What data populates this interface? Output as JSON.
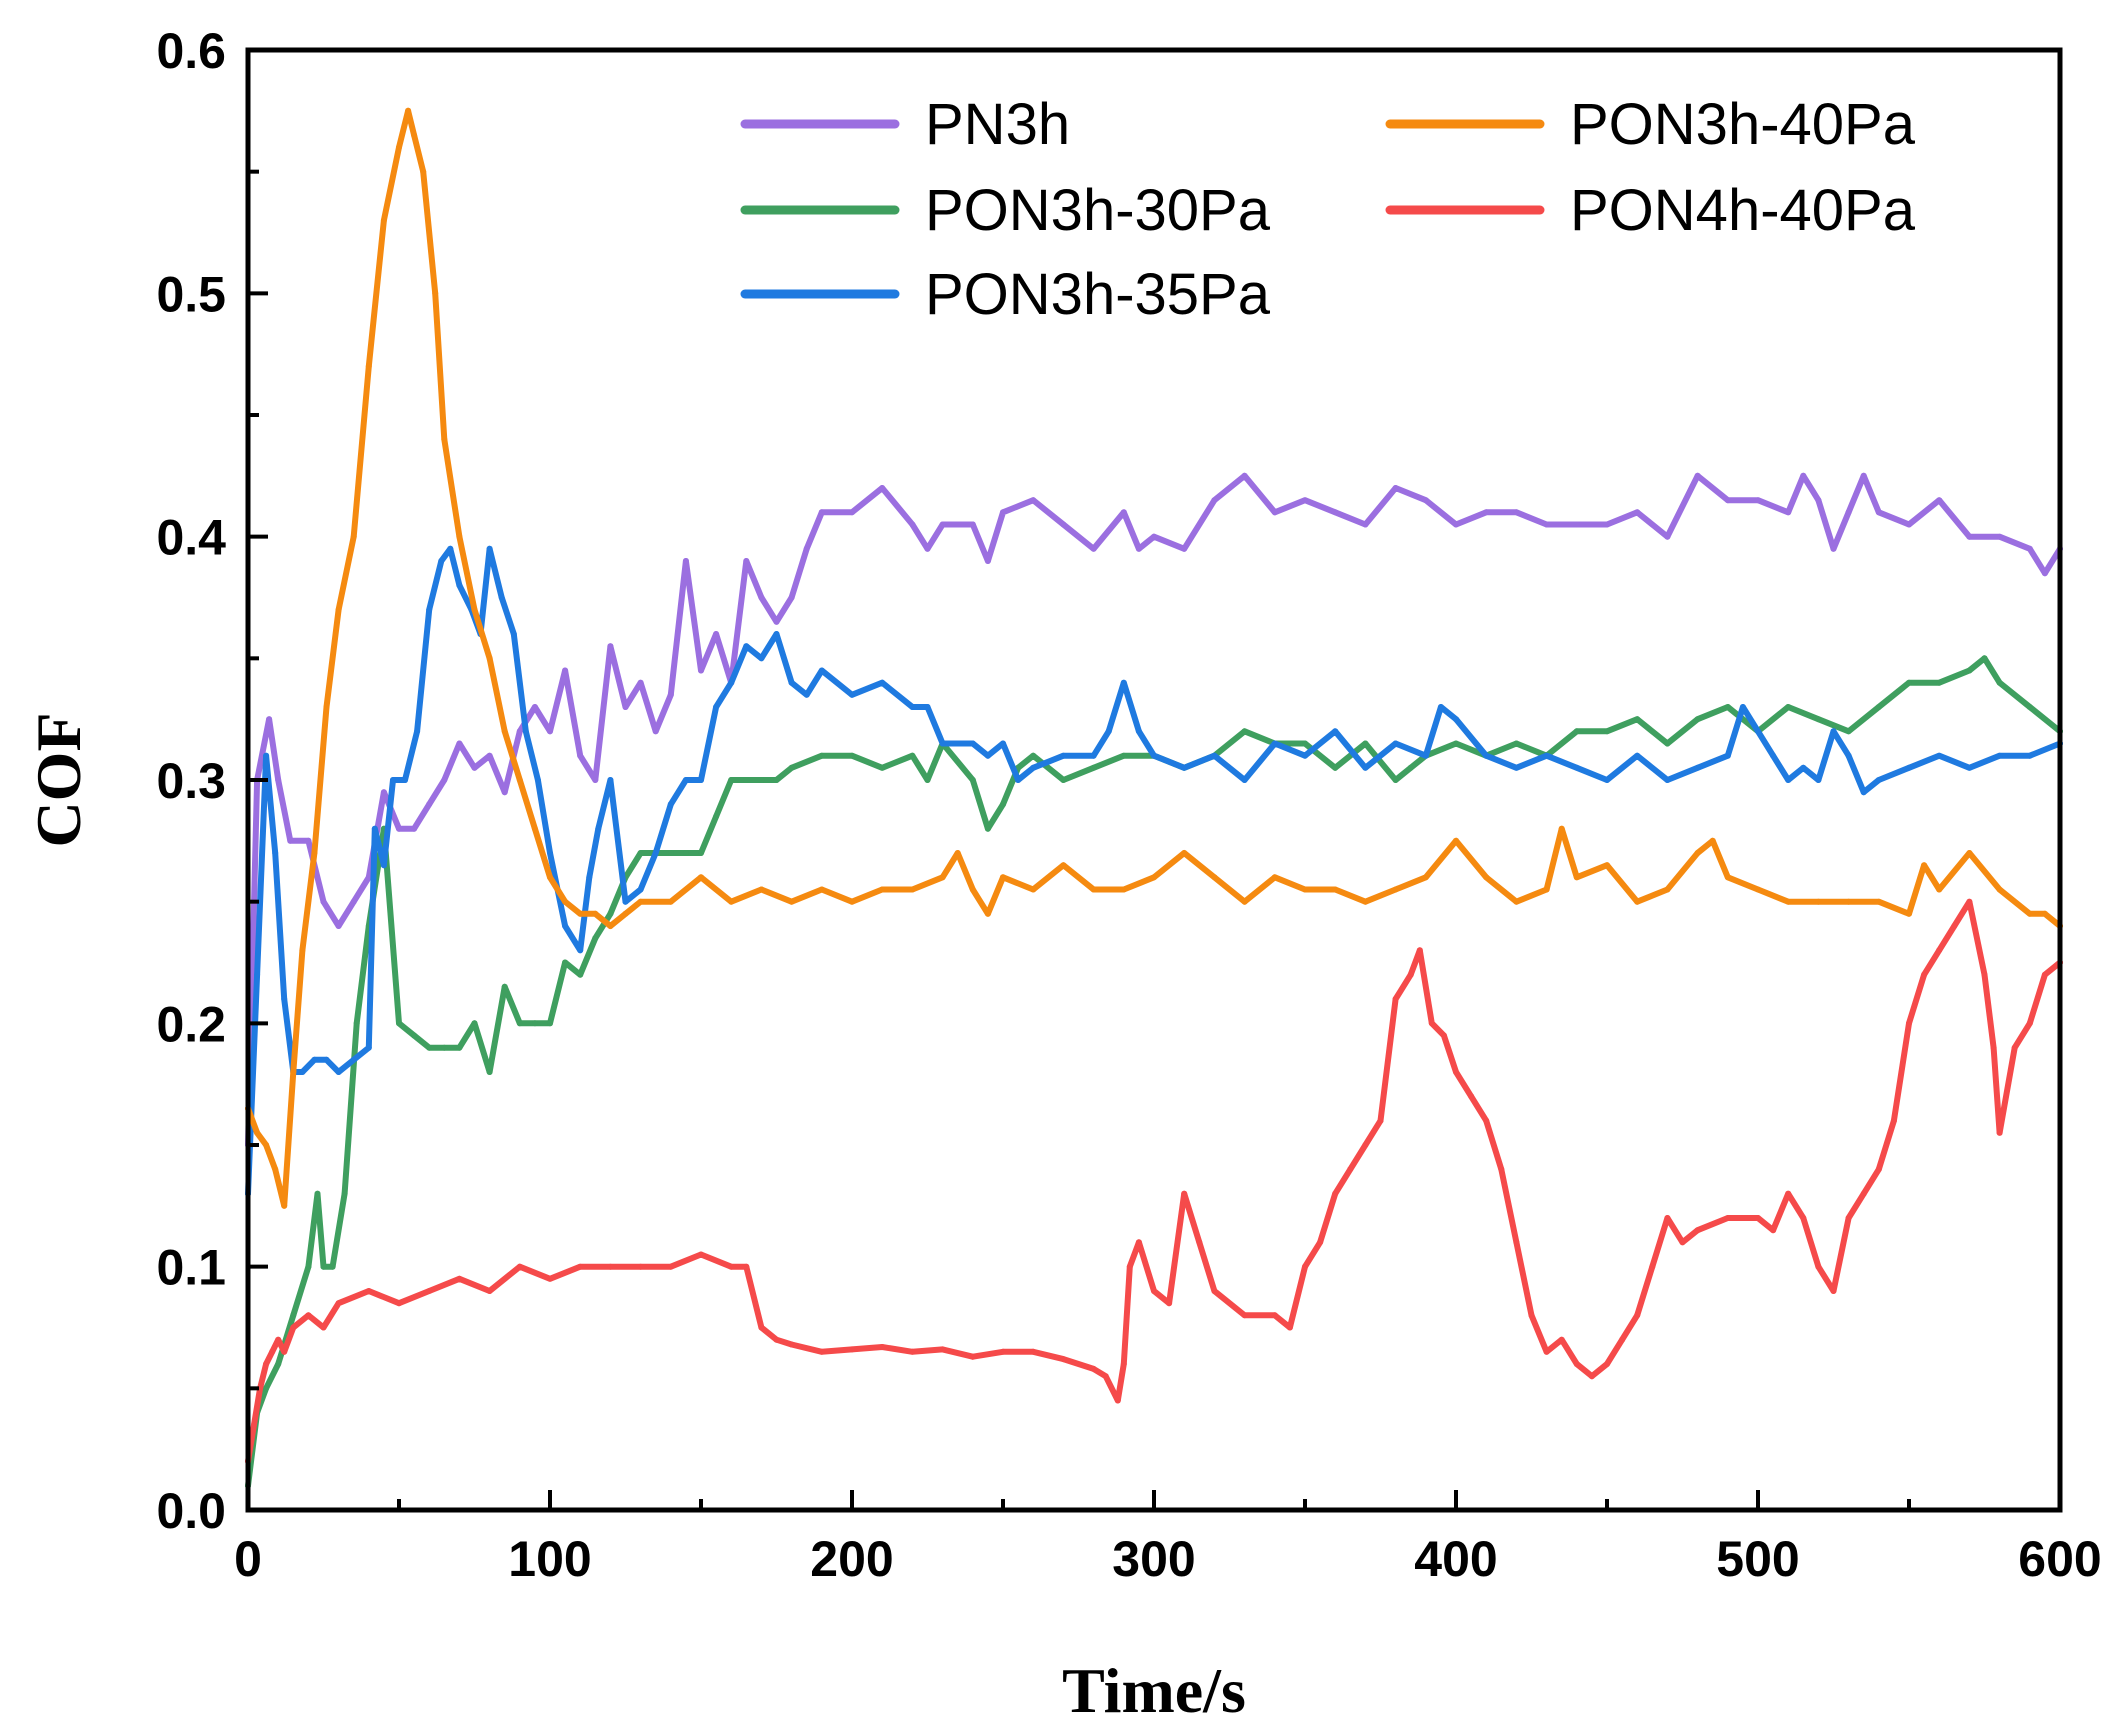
{
  "chart_data": {
    "type": "line",
    "title": "",
    "xlabel": "Time/s",
    "ylabel": "COF",
    "xlim": [
      0,
      600
    ],
    "ylim": [
      0,
      0.6
    ],
    "xticks": [
      0,
      100,
      200,
      300,
      400,
      500,
      600
    ],
    "xtick_labels": [
      "0",
      "100",
      "200",
      "300",
      "400",
      "500",
      "600"
    ],
    "yticks": [
      0,
      0.1,
      0.2,
      0.3,
      0.4,
      0.5,
      0.6
    ],
    "ytick_labels": [
      "0.0",
      "0.1",
      "0.2",
      "0.3",
      "0.4",
      "0.5",
      "0.6"
    ],
    "grid": false,
    "legend_position": "top-right",
    "series": [
      {
        "name": "PN3h",
        "color": "#9b6fe0",
        "x": [
          0,
          3,
          7,
          10,
          14,
          20,
          25,
          30,
          35,
          40,
          45,
          50,
          55,
          60,
          65,
          70,
          75,
          80,
          85,
          90,
          95,
          100,
          105,
          110,
          115,
          120,
          125,
          130,
          135,
          140,
          145,
          150,
          155,
          160,
          165,
          170,
          175,
          180,
          185,
          190,
          200,
          210,
          220,
          225,
          230,
          240,
          245,
          250,
          260,
          270,
          280,
          290,
          295,
          300,
          310,
          320,
          330,
          340,
          350,
          360,
          370,
          380,
          390,
          400,
          410,
          420,
          430,
          440,
          450,
          460,
          470,
          480,
          490,
          500,
          510,
          515,
          520,
          525,
          530,
          535,
          540,
          550,
          560,
          570,
          580,
          590,
          595,
          600
        ],
        "y": [
          0.15,
          0.3,
          0.325,
          0.3,
          0.275,
          0.275,
          0.25,
          0.24,
          0.25,
          0.26,
          0.295,
          0.28,
          0.28,
          0.29,
          0.3,
          0.315,
          0.305,
          0.31,
          0.295,
          0.32,
          0.33,
          0.32,
          0.345,
          0.31,
          0.3,
          0.355,
          0.33,
          0.34,
          0.32,
          0.335,
          0.39,
          0.345,
          0.36,
          0.34,
          0.39,
          0.375,
          0.365,
          0.375,
          0.395,
          0.41,
          0.41,
          0.42,
          0.405,
          0.395,
          0.405,
          0.405,
          0.39,
          0.41,
          0.415,
          0.405,
          0.395,
          0.41,
          0.395,
          0.4,
          0.395,
          0.415,
          0.425,
          0.41,
          0.415,
          0.41,
          0.405,
          0.42,
          0.415,
          0.405,
          0.41,
          0.41,
          0.405,
          0.405,
          0.405,
          0.41,
          0.4,
          0.425,
          0.415,
          0.415,
          0.41,
          0.425,
          0.415,
          0.395,
          0.41,
          0.425,
          0.41,
          0.405,
          0.415,
          0.4,
          0.4,
          0.395,
          0.385,
          0.395
        ]
      },
      {
        "name": "PON3h-30Pa",
        "color": "#3f9f5f",
        "x": [
          0,
          3,
          6,
          10,
          15,
          20,
          23,
          25,
          28,
          32,
          36,
          40,
          45,
          50,
          55,
          60,
          65,
          70,
          75,
          80,
          85,
          90,
          95,
          100,
          105,
          110,
          115,
          120,
          125,
          130,
          135,
          140,
          145,
          150,
          155,
          160,
          165,
          170,
          175,
          180,
          190,
          200,
          210,
          220,
          225,
          230,
          240,
          245,
          250,
          255,
          260,
          270,
          280,
          290,
          300,
          310,
          320,
          330,
          340,
          350,
          360,
          370,
          380,
          385,
          390,
          400,
          410,
          420,
          430,
          440,
          450,
          460,
          470,
          480,
          490,
          500,
          510,
          520,
          530,
          540,
          550,
          560,
          570,
          575,
          580,
          590,
          600
        ],
        "y": [
          0.01,
          0.04,
          0.05,
          0.06,
          0.08,
          0.1,
          0.13,
          0.1,
          0.1,
          0.13,
          0.2,
          0.24,
          0.28,
          0.2,
          0.195,
          0.19,
          0.19,
          0.19,
          0.2,
          0.18,
          0.215,
          0.2,
          0.2,
          0.2,
          0.225,
          0.22,
          0.235,
          0.245,
          0.26,
          0.27,
          0.27,
          0.27,
          0.27,
          0.27,
          0.285,
          0.3,
          0.3,
          0.3,
          0.3,
          0.305,
          0.31,
          0.31,
          0.305,
          0.31,
          0.3,
          0.315,
          0.3,
          0.28,
          0.29,
          0.305,
          0.31,
          0.3,
          0.305,
          0.31,
          0.31,
          0.305,
          0.31,
          0.32,
          0.315,
          0.315,
          0.305,
          0.315,
          0.3,
          0.305,
          0.31,
          0.315,
          0.31,
          0.315,
          0.31,
          0.32,
          0.32,
          0.325,
          0.315,
          0.325,
          0.33,
          0.32,
          0.33,
          0.325,
          0.32,
          0.33,
          0.34,
          0.34,
          0.345,
          0.35,
          0.34,
          0.33,
          0.32
        ]
      },
      {
        "name": "PON3h-35Pa",
        "color": "#1f7ae0",
        "x": [
          0,
          3,
          6,
          9,
          12,
          15,
          18,
          22,
          26,
          30,
          35,
          40,
          42,
          45,
          48,
          52,
          56,
          60,
          64,
          67,
          70,
          74,
          77,
          80,
          84,
          88,
          92,
          96,
          100,
          105,
          110,
          113,
          116,
          120,
          125,
          130,
          135,
          140,
          145,
          150,
          155,
          160,
          165,
          170,
          175,
          180,
          185,
          190,
          200,
          210,
          220,
          225,
          230,
          240,
          245,
          250,
          255,
          260,
          270,
          280,
          285,
          290,
          295,
          300,
          310,
          320,
          330,
          340,
          350,
          360,
          370,
          380,
          390,
          395,
          400,
          410,
          420,
          430,
          440,
          450,
          460,
          470,
          480,
          490,
          495,
          500,
          505,
          510,
          515,
          520,
          525,
          530,
          535,
          540,
          550,
          560,
          570,
          580,
          590,
          600
        ],
        "y": [
          0.13,
          0.22,
          0.31,
          0.27,
          0.21,
          0.18,
          0.18,
          0.185,
          0.185,
          0.18,
          0.185,
          0.19,
          0.28,
          0.265,
          0.3,
          0.3,
          0.32,
          0.37,
          0.39,
          0.395,
          0.38,
          0.37,
          0.36,
          0.395,
          0.375,
          0.36,
          0.32,
          0.3,
          0.27,
          0.24,
          0.23,
          0.26,
          0.28,
          0.3,
          0.25,
          0.255,
          0.27,
          0.29,
          0.3,
          0.3,
          0.33,
          0.34,
          0.355,
          0.35,
          0.36,
          0.34,
          0.335,
          0.345,
          0.335,
          0.34,
          0.33,
          0.33,
          0.315,
          0.315,
          0.31,
          0.315,
          0.3,
          0.305,
          0.31,
          0.31,
          0.32,
          0.34,
          0.32,
          0.31,
          0.305,
          0.31,
          0.3,
          0.315,
          0.31,
          0.32,
          0.305,
          0.315,
          0.31,
          0.33,
          0.325,
          0.31,
          0.305,
          0.31,
          0.305,
          0.3,
          0.31,
          0.3,
          0.305,
          0.31,
          0.33,
          0.32,
          0.31,
          0.3,
          0.305,
          0.3,
          0.32,
          0.31,
          0.295,
          0.3,
          0.305,
          0.31,
          0.305,
          0.31,
          0.31,
          0.315
        ]
      },
      {
        "name": "PON3h-40Pa",
        "color": "#f58a10",
        "x": [
          0,
          3,
          6,
          9,
          12,
          15,
          18,
          22,
          26,
          30,
          35,
          40,
          45,
          50,
          53,
          55,
          58,
          62,
          65,
          70,
          75,
          80,
          85,
          90,
          95,
          100,
          105,
          110,
          115,
          120,
          125,
          130,
          140,
          150,
          160,
          170,
          180,
          190,
          200,
          210,
          220,
          230,
          235,
          240,
          245,
          250,
          260,
          270,
          280,
          290,
          300,
          310,
          320,
          330,
          340,
          350,
          360,
          370,
          380,
          390,
          400,
          410,
          420,
          430,
          435,
          440,
          450,
          460,
          470,
          480,
          485,
          490,
          500,
          510,
          520,
          530,
          540,
          550,
          555,
          560,
          570,
          580,
          590,
          595,
          600
        ],
        "y": [
          0.165,
          0.155,
          0.15,
          0.14,
          0.125,
          0.18,
          0.23,
          0.27,
          0.33,
          0.37,
          0.4,
          0.47,
          0.53,
          0.56,
          0.575,
          0.565,
          0.55,
          0.5,
          0.44,
          0.4,
          0.37,
          0.35,
          0.32,
          0.3,
          0.28,
          0.26,
          0.25,
          0.245,
          0.245,
          0.24,
          0.245,
          0.25,
          0.25,
          0.26,
          0.25,
          0.255,
          0.25,
          0.255,
          0.25,
          0.255,
          0.255,
          0.26,
          0.27,
          0.255,
          0.245,
          0.26,
          0.255,
          0.265,
          0.255,
          0.255,
          0.26,
          0.27,
          0.26,
          0.25,
          0.26,
          0.255,
          0.255,
          0.25,
          0.255,
          0.26,
          0.275,
          0.26,
          0.25,
          0.255,
          0.28,
          0.26,
          0.265,
          0.25,
          0.255,
          0.27,
          0.275,
          0.26,
          0.255,
          0.25,
          0.25,
          0.25,
          0.25,
          0.245,
          0.265,
          0.255,
          0.27,
          0.255,
          0.245,
          0.245,
          0.24
        ]
      },
      {
        "name": "PON4h-40Pa",
        "color": "#f54a4a",
        "x": [
          0,
          2,
          4,
          6,
          8,
          10,
          12,
          15,
          20,
          25,
          30,
          40,
          50,
          60,
          70,
          80,
          90,
          100,
          110,
          120,
          130,
          140,
          150,
          160,
          165,
          170,
          175,
          180,
          190,
          200,
          210,
          220,
          230,
          240,
          250,
          260,
          270,
          280,
          284,
          288,
          290,
          292,
          295,
          300,
          305,
          310,
          315,
          320,
          330,
          340,
          345,
          350,
          355,
          360,
          365,
          370,
          375,
          380,
          385,
          388,
          392,
          396,
          400,
          405,
          410,
          415,
          420,
          425,
          430,
          435,
          440,
          445,
          450,
          455,
          460,
          465,
          470,
          475,
          480,
          490,
          500,
          505,
          510,
          515,
          520,
          525,
          530,
          535,
          540,
          545,
          550,
          555,
          560,
          565,
          570,
          575,
          578,
          580,
          585,
          590,
          595,
          600
        ],
        "y": [
          0.02,
          0.035,
          0.05,
          0.06,
          0.065,
          0.07,
          0.065,
          0.075,
          0.08,
          0.075,
          0.085,
          0.09,
          0.085,
          0.09,
          0.095,
          0.09,
          0.1,
          0.095,
          0.1,
          0.1,
          0.1,
          0.1,
          0.105,
          0.1,
          0.1,
          0.075,
          0.07,
          0.068,
          0.065,
          0.066,
          0.067,
          0.065,
          0.066,
          0.063,
          0.065,
          0.065,
          0.062,
          0.058,
          0.055,
          0.045,
          0.06,
          0.1,
          0.11,
          0.09,
          0.085,
          0.13,
          0.11,
          0.09,
          0.08,
          0.08,
          0.075,
          0.1,
          0.11,
          0.13,
          0.14,
          0.15,
          0.16,
          0.21,
          0.22,
          0.23,
          0.2,
          0.195,
          0.18,
          0.17,
          0.16,
          0.14,
          0.11,
          0.08,
          0.065,
          0.07,
          0.06,
          0.055,
          0.06,
          0.07,
          0.08,
          0.1,
          0.12,
          0.11,
          0.115,
          0.12,
          0.12,
          0.115,
          0.13,
          0.12,
          0.1,
          0.09,
          0.12,
          0.13,
          0.14,
          0.16,
          0.2,
          0.22,
          0.23,
          0.24,
          0.25,
          0.22,
          0.19,
          0.155,
          0.19,
          0.2,
          0.22,
          0.225
        ]
      }
    ]
  }
}
